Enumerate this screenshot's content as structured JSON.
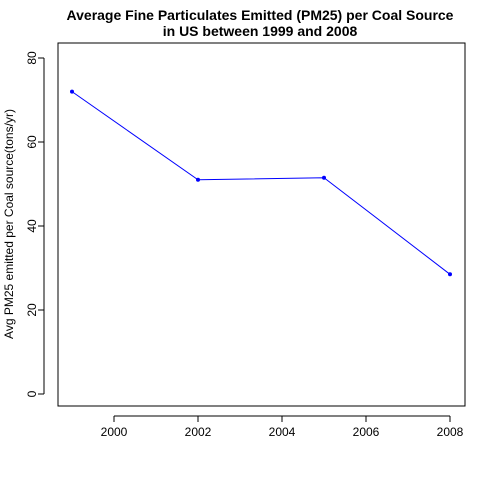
{
  "chart_data": {
    "type": "line",
    "title": "Average Fine Particulates Emitted (PM25) per Coal Source",
    "subtitle": "in US between 1999 and 2008",
    "xlabel": "",
    "ylabel": "Avg PM25 emitted per Coal source(tons/yr)",
    "x": [
      1999,
      2002,
      2005,
      2008
    ],
    "series": [
      {
        "values": [
          72.0,
          51.0,
          51.5,
          28.5
        ]
      }
    ],
    "xlim": [
      1999,
      2008
    ],
    "ylim": [
      0,
      80
    ],
    "xticks": [
      2000,
      2002,
      2004,
      2006,
      2008
    ],
    "yticks": [
      0,
      20,
      40,
      60,
      80
    ],
    "grid": false,
    "legend": "none",
    "line_color": "#0000ff",
    "point_color": "#0000ff"
  }
}
